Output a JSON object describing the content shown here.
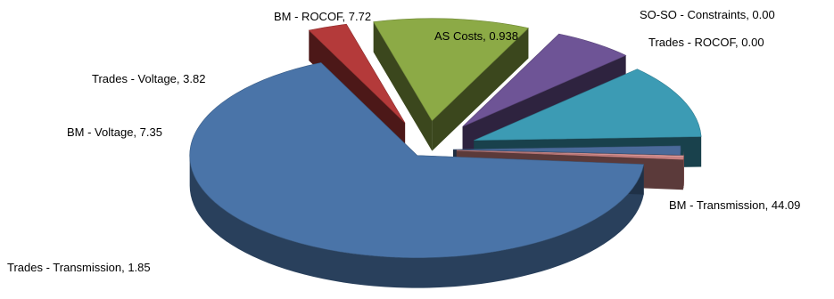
{
  "chart_data": {
    "type": "pie",
    "style": "3d-exploded",
    "title": "",
    "slices": [
      {
        "label": "BM - Transmission, 44.09",
        "name": "BM - Transmission",
        "value": 44.09,
        "color": "#4A74A8"
      },
      {
        "label": "Trades - Transmission, 1.85",
        "name": "Trades - Transmission",
        "value": 1.85,
        "color": "#B43A3A"
      },
      {
        "label": "BM - Voltage, 7.35",
        "name": "BM - Voltage",
        "value": 7.35,
        "color": "#8CAA46"
      },
      {
        "label": "Trades - Voltage, 3.82",
        "name": "Trades - Voltage",
        "value": 3.82,
        "color": "#6E5496"
      },
      {
        "label": "BM - ROCOF, 7.72",
        "name": "BM - ROCOF",
        "value": 7.72,
        "color": "#3C9BB4"
      },
      {
        "label": "AS Costs, 0.938",
        "name": "AS Costs",
        "value": 0.938,
        "color": "#4A6A9A"
      },
      {
        "label": "SO-SO - Constraints, 0.00",
        "name": "SO-SO - Constraints",
        "value": 0.0,
        "color": "#E09A9A"
      },
      {
        "label": "Trades - ROCOF, 0.00",
        "name": "Trades - ROCOF",
        "value": 0.0,
        "color": "#D88A8A"
      }
    ]
  }
}
